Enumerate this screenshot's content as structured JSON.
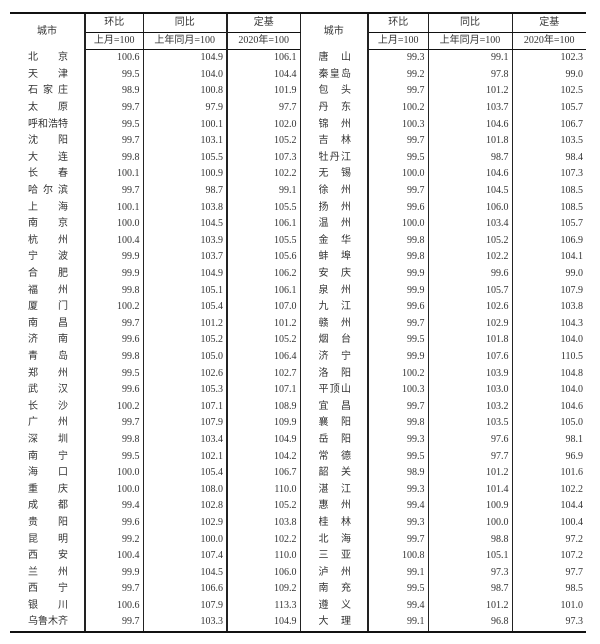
{
  "header": {
    "city": "城市",
    "mom": "环比",
    "mom_base": "上月=100",
    "yoy": "同比",
    "yoy_base": "上年同月=100",
    "fixed": "定基",
    "fixed_base": "2020年=100"
  },
  "left_rows": [
    [
      "北京",
      "100.6",
      "104.9",
      "106.1"
    ],
    [
      "天津",
      "99.5",
      "104.0",
      "104.4"
    ],
    [
      "石家庄",
      "98.9",
      "100.8",
      "101.9"
    ],
    [
      "太原",
      "99.7",
      "97.9",
      "97.7"
    ],
    [
      "呼和浩特",
      "99.5",
      "100.1",
      "102.0"
    ],
    [
      "沈阳",
      "99.7",
      "103.1",
      "105.2"
    ],
    [
      "大连",
      "99.8",
      "105.5",
      "107.3"
    ],
    [
      "长春",
      "100.1",
      "100.9",
      "102.2"
    ],
    [
      "哈尔滨",
      "99.7",
      "98.7",
      "99.1"
    ],
    [
      "上海",
      "100.1",
      "103.8",
      "105.5"
    ],
    [
      "南京",
      "100.0",
      "104.5",
      "106.1"
    ],
    [
      "杭州",
      "100.4",
      "103.9",
      "105.5"
    ],
    [
      "宁波",
      "99.9",
      "103.7",
      "105.6"
    ],
    [
      "合肥",
      "99.9",
      "104.9",
      "106.2"
    ],
    [
      "福州",
      "99.8",
      "105.1",
      "106.1"
    ],
    [
      "厦门",
      "100.2",
      "105.4",
      "107.0"
    ],
    [
      "南昌",
      "99.7",
      "101.2",
      "101.2"
    ],
    [
      "济南",
      "99.6",
      "105.2",
      "105.2"
    ],
    [
      "青岛",
      "99.8",
      "105.0",
      "106.4"
    ],
    [
      "郑州",
      "99.5",
      "102.6",
      "102.7"
    ],
    [
      "武汉",
      "99.6",
      "105.3",
      "107.1"
    ],
    [
      "长沙",
      "100.2",
      "107.1",
      "108.9"
    ],
    [
      "广州",
      "99.7",
      "107.9",
      "109.9"
    ],
    [
      "深圳",
      "99.8",
      "103.4",
      "104.9"
    ],
    [
      "南宁",
      "99.5",
      "102.1",
      "104.2"
    ],
    [
      "海口",
      "100.0",
      "105.4",
      "106.7"
    ],
    [
      "重庆",
      "100.0",
      "108.0",
      "110.0"
    ],
    [
      "成都",
      "99.4",
      "102.8",
      "105.2"
    ],
    [
      "贵阳",
      "99.6",
      "102.9",
      "103.8"
    ],
    [
      "昆明",
      "99.2",
      "100.0",
      "102.2"
    ],
    [
      "西安",
      "100.4",
      "107.4",
      "110.0"
    ],
    [
      "兰州",
      "99.9",
      "104.5",
      "106.0"
    ],
    [
      "西宁",
      "99.7",
      "106.6",
      "109.2"
    ],
    [
      "银川",
      "100.6",
      "107.9",
      "113.3"
    ],
    [
      "乌鲁木齐",
      "99.7",
      "103.3",
      "104.9"
    ]
  ],
  "right_rows": [
    [
      "唐山",
      "99.3",
      "99.1",
      "102.3"
    ],
    [
      "秦皇岛",
      "99.2",
      "97.8",
      "99.0"
    ],
    [
      "包头",
      "99.7",
      "101.2",
      "102.5"
    ],
    [
      "丹东",
      "100.2",
      "103.7",
      "105.7"
    ],
    [
      "锦州",
      "100.3",
      "104.6",
      "106.7"
    ],
    [
      "吉林",
      "99.7",
      "101.8",
      "103.5"
    ],
    [
      "牡丹江",
      "99.5",
      "98.7",
      "98.4"
    ],
    [
      "无锡",
      "100.0",
      "104.6",
      "107.3"
    ],
    [
      "徐州",
      "99.7",
      "104.5",
      "108.5"
    ],
    [
      "扬州",
      "99.6",
      "106.0",
      "108.5"
    ],
    [
      "温州",
      "100.0",
      "103.4",
      "105.7"
    ],
    [
      "金华",
      "99.8",
      "105.2",
      "106.9"
    ],
    [
      "蚌埠",
      "99.8",
      "102.2",
      "104.1"
    ],
    [
      "安庆",
      "99.9",
      "99.6",
      "99.0"
    ],
    [
      "泉州",
      "99.9",
      "105.7",
      "107.9"
    ],
    [
      "九江",
      "99.6",
      "102.6",
      "103.8"
    ],
    [
      "赣州",
      "99.7",
      "102.9",
      "104.3"
    ],
    [
      "烟台",
      "99.5",
      "101.8",
      "104.0"
    ],
    [
      "济宁",
      "99.9",
      "107.6",
      "110.5"
    ],
    [
      "洛阳",
      "100.2",
      "103.9",
      "104.8"
    ],
    [
      "平顶山",
      "100.3",
      "103.0",
      "104.0"
    ],
    [
      "宜昌",
      "99.7",
      "103.2",
      "104.6"
    ],
    [
      "襄阳",
      "99.8",
      "103.5",
      "105.0"
    ],
    [
      "岳阳",
      "99.3",
      "97.6",
      "98.1"
    ],
    [
      "常德",
      "99.5",
      "97.7",
      "96.9"
    ],
    [
      "韶关",
      "98.9",
      "101.2",
      "101.6"
    ],
    [
      "湛江",
      "99.3",
      "101.4",
      "102.2"
    ],
    [
      "惠州",
      "99.4",
      "100.9",
      "104.4"
    ],
    [
      "桂林",
      "99.3",
      "100.0",
      "100.4"
    ],
    [
      "北海",
      "99.7",
      "98.8",
      "97.2"
    ],
    [
      "三亚",
      "100.8",
      "105.1",
      "107.2"
    ],
    [
      "泸州",
      "99.1",
      "97.3",
      "97.7"
    ],
    [
      "南充",
      "99.5",
      "98.7",
      "98.5"
    ],
    [
      "遵义",
      "99.4",
      "101.2",
      "101.0"
    ],
    [
      "大理",
      "99.1",
      "96.8",
      "97.3"
    ]
  ]
}
